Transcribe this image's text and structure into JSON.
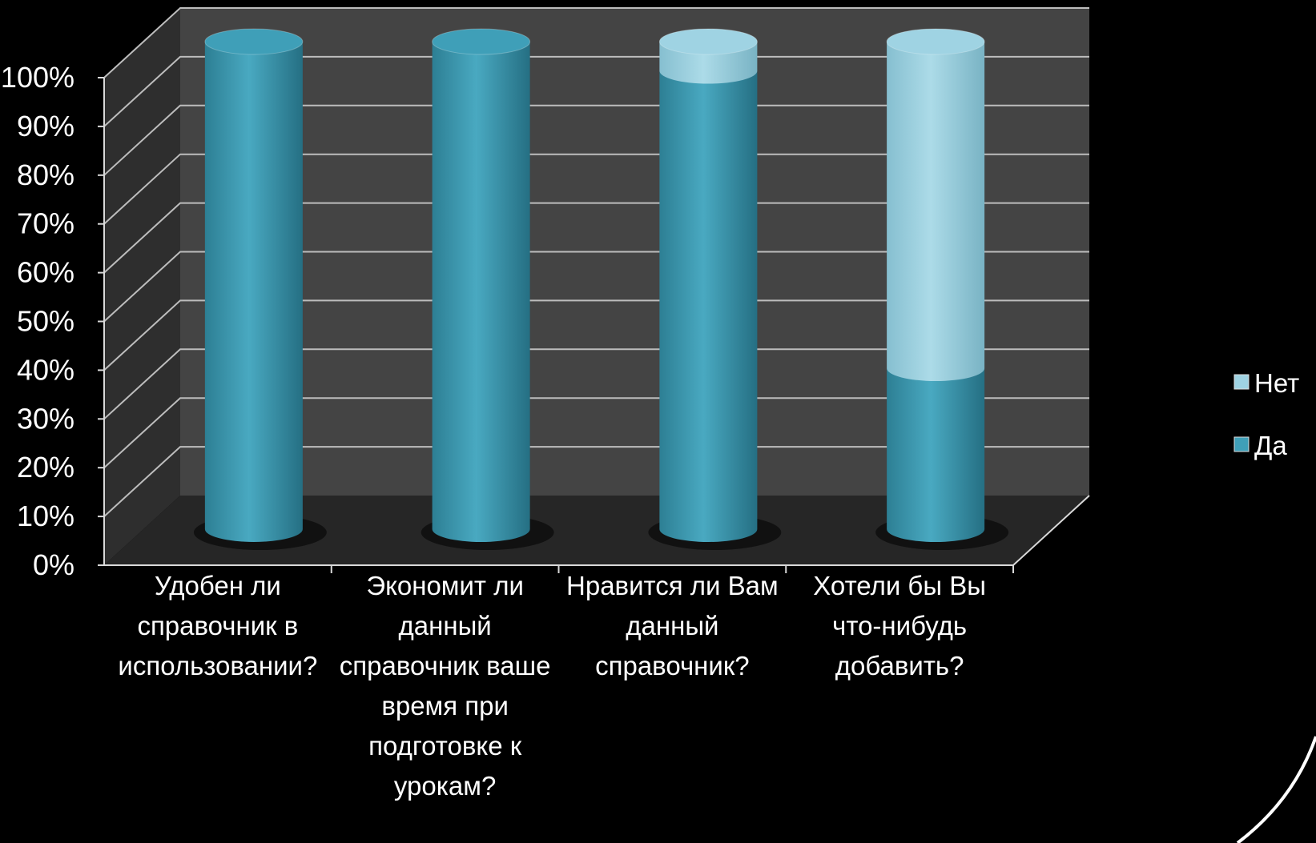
{
  "chart_data": {
    "type": "bar",
    "stacked": true,
    "percent": true,
    "three_d": true,
    "bar_shape": "cylinder",
    "categories": [
      [
        "Удобен ли",
        "справочник в",
        "использовании?"
      ],
      [
        "Экономит ли",
        "данный",
        "справочник ваше",
        "время при",
        "подготовке к",
        "урокам?"
      ],
      [
        "Нравится ли Вам",
        "данный",
        "справочник?"
      ],
      [
        "Хотели бы Вы",
        "что-нибудь",
        "добавить?"
      ]
    ],
    "series": [
      {
        "name": "Да",
        "values": [
          100,
          100,
          94,
          33
        ],
        "color": "#3f9fb8"
      },
      {
        "name": "Нет",
        "values": [
          0,
          0,
          6,
          67
        ],
        "color": "#9fd3e3"
      }
    ],
    "y_ticks": [
      "0%",
      "10%",
      "20%",
      "30%",
      "40%",
      "50%",
      "60%",
      "70%",
      "80%",
      "90%",
      "100%"
    ],
    "ylim": [
      0,
      100
    ],
    "grid": true,
    "legend_position": "right",
    "legend_order": [
      "Нет",
      "Да"
    ],
    "title": "",
    "xlabel": "",
    "ylabel": ""
  },
  "colors": {
    "background": "#000000",
    "back_wall": "#444444",
    "side_wall": "#2e2e2e",
    "floor": "#262626",
    "grid": "#bdbdbd",
    "axis": "#d9d9d9"
  }
}
